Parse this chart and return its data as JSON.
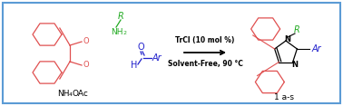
{
  "background_color": "#ffffff",
  "border_color": "#5b9bd5",
  "border_linewidth": 1.5,
  "reaction_line1": "TrCl (10 mol %)",
  "reaction_line2": "Solvent-Free, 90 °C",
  "label_1as": "1 a-s",
  "red_color": "#e05050",
  "green_color": "#22aa22",
  "blue_color": "#2222cc",
  "black_color": "#000000"
}
